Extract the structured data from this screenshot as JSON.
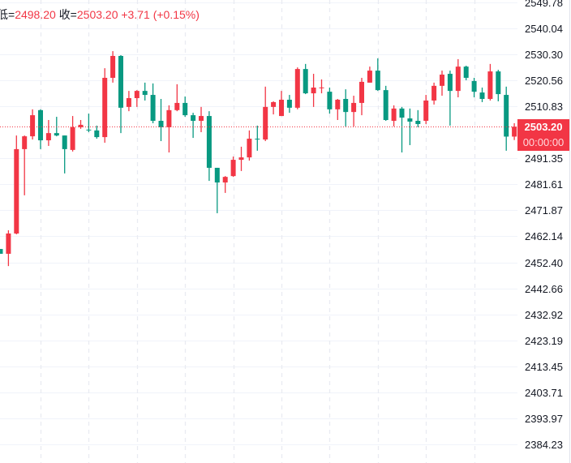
{
  "legend": {
    "low_label": "低=",
    "low_value": "2498.20",
    "close_label": "收=",
    "close_value": "2503.20",
    "change": "+3.71 (+0.15%)"
  },
  "price_tag": {
    "price": "2503.20",
    "countdown": "00:00:00"
  },
  "colors": {
    "up": "#f23645",
    "down": "#089981",
    "grid": "#f0f3fa"
  },
  "chart_data": {
    "type": "candlestick",
    "title": "",
    "ylim": [
      2380,
      2552
    ],
    "current_price": 2503.2,
    "y_ticks": [
      "2549.78",
      "2540.04",
      "2530.30",
      "2520.56",
      "2510.83",
      "2503.20",
      "2491.35",
      "2481.61",
      "2471.87",
      "2462.14",
      "2452.40",
      "2442.66",
      "2432.92",
      "2423.19",
      "2413.45",
      "2403.71",
      "2393.97",
      "2384.23"
    ],
    "y_tick_values": [
      2549.78,
      2540.04,
      2530.3,
      2520.56,
      2510.83,
      null,
      2491.35,
      2481.61,
      2471.87,
      2462.14,
      2452.4,
      2442.66,
      2432.92,
      2423.19,
      2413.45,
      2403.71,
      2393.97,
      2384.23
    ],
    "candles_ohlc": [
      [
        2457.4,
        2457.4,
        2455.6,
        2455.6
      ],
      [
        2455.6,
        2464.4,
        2451.0,
        2463.2
      ],
      [
        2463.2,
        2499.9,
        2462.9,
        2494.8
      ],
      [
        2494.8,
        2499.9,
        2477.5,
        2499.6
      ],
      [
        2499.6,
        2509.7,
        2498.4,
        2507.5
      ],
      [
        2509.4,
        2509.7,
        2494.8,
        2498.1
      ],
      [
        2498.1,
        2505.7,
        2496.0,
        2500.8
      ],
      [
        2500.8,
        2506.9,
        2499.6,
        2499.9
      ],
      [
        2499.9,
        2499.9,
        2485.7,
        2494.8
      ],
      [
        2494.5,
        2507.2,
        2493.9,
        2503.0
      ],
      [
        2503.0,
        2505.7,
        2502.4,
        2503.9
      ],
      [
        2502.1,
        2508.1,
        2501.15,
        2502.0
      ],
      [
        2501.8,
        2503.6,
        2498.7,
        2499.3
      ],
      [
        2499.3,
        2525.1,
        2497.2,
        2521.5
      ],
      [
        2521.5,
        2531.5,
        2519.7,
        2529.7
      ],
      [
        2529.7,
        2530.0,
        2500.8,
        2510.3
      ],
      [
        2510.6,
        2516.6,
        2509.0,
        2513.9
      ],
      [
        2513.9,
        2516.9,
        2510.6,
        2516.6
      ],
      [
        2516.6,
        2519.7,
        2513.0,
        2515.1
      ],
      [
        2515.1,
        2519.4,
        2504.5,
        2505.4
      ],
      [
        2505.4,
        2513.6,
        2497.8,
        2503.0
      ],
      [
        2503.0,
        2511.2,
        2493.55,
        2509.4
      ],
      [
        2509.4,
        2519.1,
        2509.0,
        2512.1
      ],
      [
        2512.1,
        2514.5,
        2506.9,
        2507.5
      ],
      [
        2507.5,
        2508.4,
        2499.0,
        2505.4
      ],
      [
        2505.4,
        2510.6,
        2501.15,
        2507.2
      ],
      [
        2507.2,
        2509.0,
        2482.9,
        2487.8
      ],
      [
        2487.8,
        2487.8,
        2470.8,
        2482.3
      ],
      [
        2482.3,
        2484.7,
        2478.4,
        2484.4
      ],
      [
        2484.7,
        2492.0,
        2484.4,
        2490.8
      ],
      [
        2490.8,
        2495.7,
        2486.6,
        2491.7
      ],
      [
        2491.7,
        2501.8,
        2490.5,
        2498.7
      ],
      [
        2498.7,
        2503.6,
        2494.2,
        2498.6
      ],
      [
        2498.4,
        2518.2,
        2497.8,
        2510.6
      ],
      [
        2510.6,
        2512.7,
        2507.8,
        2512.4
      ],
      [
        2507.2,
        2516.6,
        2507.2,
        2513.3
      ],
      [
        2513.3,
        2515.1,
        2508.4,
        2510.3
      ],
      [
        2510.3,
        2525.4,
        2509.7,
        2524.8
      ],
      [
        2524.8,
        2526.7,
        2515.4,
        2515.7
      ],
      [
        2515.7,
        2523.0,
        2510.6,
        2517.85
      ],
      [
        2517.85,
        2520.9,
        2515.7,
        2517.9
      ],
      [
        2516.3,
        2517.85,
        2508.1,
        2509.7
      ],
      [
        2509.7,
        2513.6,
        2505.7,
        2513.3
      ],
      [
        2513.6,
        2517.2,
        2503.3,
        2508.7
      ],
      [
        2508.7,
        2514.8,
        2503.3,
        2512.1
      ],
      [
        2512.1,
        2521.5,
        2507.5,
        2520.0
      ],
      [
        2519.7,
        2525.7,
        2519.7,
        2524.2
      ],
      [
        2524.2,
        2528.8,
        2516.6,
        2516.9
      ],
      [
        2516.9,
        2518.5,
        2505.4,
        2505.7
      ],
      [
        2505.4,
        2511.2,
        2503.3,
        2510.0
      ],
      [
        2510.0,
        2510.6,
        2493.55,
        2506.6
      ],
      [
        2506.3,
        2510.0,
        2496.3,
        2505.1
      ],
      [
        2505.4,
        2509.4,
        2503.0,
        2504.2
      ],
      [
        2505.4,
        2515.1,
        2504.2,
        2513.0
      ],
      [
        2513.0,
        2519.7,
        2511.5,
        2518.5
      ],
      [
        2518.5,
        2524.2,
        2514.8,
        2522.7
      ],
      [
        2523.0,
        2524.2,
        2503.6,
        2516.6
      ],
      [
        2516.6,
        2528.5,
        2514.2,
        2525.7
      ],
      [
        2525.7,
        2526.05,
        2520.6,
        2521.5
      ],
      [
        2520.3,
        2521.5,
        2514.2,
        2516.3
      ],
      [
        2516.0,
        2517.85,
        2512.4,
        2513.6
      ],
      [
        2513.6,
        2526.7,
        2513.0,
        2523.9
      ],
      [
        2523.9,
        2524.5,
        2512.7,
        2515.4
      ],
      [
        2515.1,
        2518.2,
        2494.2,
        2499.49
      ],
      [
        2499.49,
        2504.5,
        2498.2,
        2503.2
      ]
    ]
  }
}
